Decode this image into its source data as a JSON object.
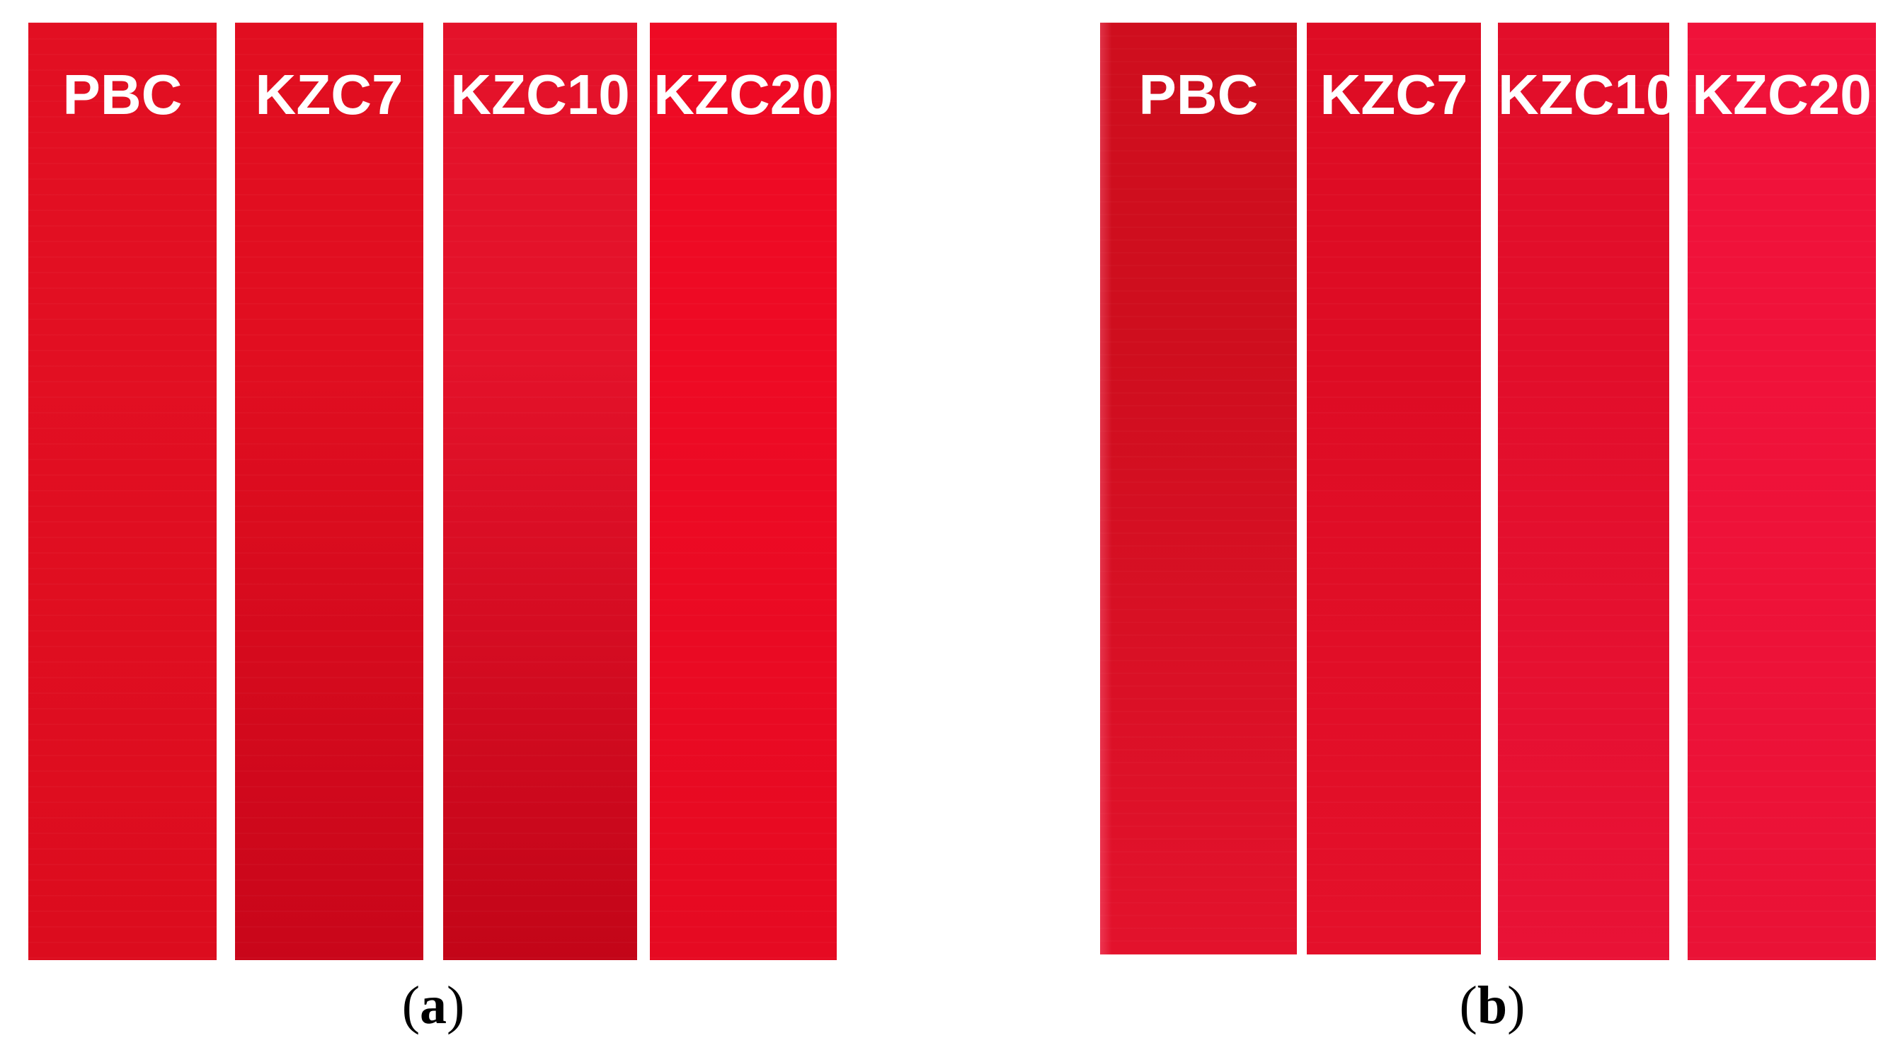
{
  "panels": [
    {
      "id": "a",
      "caption_open": "(",
      "caption_letter": "a",
      "caption_close": ")",
      "strips": [
        {
          "label": "PBC",
          "color_top": "#e20f22",
          "color_bottom": "#dc0c1e"
        },
        {
          "label": "KZC7",
          "color_top": "#e10e20",
          "color_bottom": "#c9061a"
        },
        {
          "label": "KZC10",
          "color_top": "#e4122a",
          "color_bottom": "#c30518"
        },
        {
          "label": "KZC20",
          "color_top": "#ee0a24",
          "color_bottom": "#e60a22"
        }
      ]
    },
    {
      "id": "b",
      "caption_open": "(",
      "caption_letter": "b",
      "caption_close": ")",
      "strips": [
        {
          "label": "PBC",
          "color_top": "#cf0e1e",
          "color_bottom": "#e3122c"
        },
        {
          "label": "KZC7",
          "color_top": "#de0c24",
          "color_bottom": "#e4102a"
        },
        {
          "label": "KZC10",
          "color_top": "#e20e2a",
          "color_bottom": "#e91236"
        },
        {
          "label": "KZC20",
          "color_top": "#f0123a",
          "color_bottom": "#ea1236"
        }
      ]
    }
  ]
}
